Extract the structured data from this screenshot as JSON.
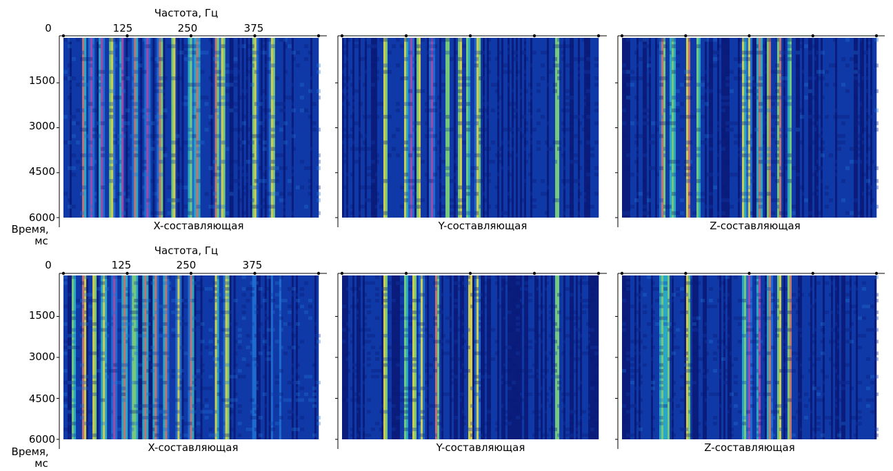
{
  "colors": {
    "colormap": [
      "#0a1a78",
      "#103aa8",
      "#1f6fd2",
      "#2bb0c8",
      "#7fd27a",
      "#e0d84a",
      "#d07a6a",
      "#b04aa8"
    ],
    "axis": "#000000",
    "background": "#ffffff"
  },
  "chart_data": [
    {
      "type": "heatmap",
      "row": 1,
      "component": "X",
      "title": "X-составляющая",
      "xlabel": "Частота, Гц",
      "ylabel": "Время,\nмс",
      "xlim": [
        0,
        500
      ],
      "ylim": [
        0,
        6000
      ],
      "xticks": [
        "0",
        "125",
        "250",
        "375"
      ],
      "yticks": [
        "0",
        "1500",
        "3000",
        "4500",
        "6000"
      ],
      "bright_bands_hz": [
        40,
        55,
        75,
        95,
        115,
        140,
        165,
        190,
        215,
        250,
        262,
        300,
        312,
        375,
        410
      ],
      "energy_level": 0.65
    },
    {
      "type": "heatmap",
      "row": 1,
      "component": "Y",
      "title": "Y-составляющая",
      "xlim": [
        0,
        500
      ],
      "ylim": [
        0,
        6000
      ],
      "bright_bands_hz": [
        85,
        125,
        135,
        150,
        175,
        205,
        230,
        245,
        265,
        420
      ],
      "energy_level": 0.45
    },
    {
      "type": "heatmap",
      "row": 1,
      "component": "Z",
      "title": "Z-составляющая",
      "xlim": [
        0,
        500
      ],
      "ylim": [
        0,
        6000
      ],
      "bright_bands_hz": [
        80,
        100,
        130,
        150,
        240,
        250,
        270,
        290,
        310,
        330
      ],
      "energy_level": 0.55
    },
    {
      "type": "heatmap",
      "row": 2,
      "component": "X",
      "title": "X-составляющая",
      "xlabel": "Частота, Гц",
      "ylabel": "Время,\nмс",
      "xlim": [
        0,
        500
      ],
      "ylim": [
        0,
        6000
      ],
      "xticks": [
        "0",
        "125",
        "250",
        "375"
      ],
      "yticks": [
        "0",
        "1500",
        "3000",
        "4500",
        "6000"
      ],
      "bright_bands_hz": [
        20,
        40,
        60,
        80,
        100,
        120,
        140,
        160,
        180,
        200,
        225,
        250,
        300,
        320
      ],
      "energy_level": 0.75
    },
    {
      "type": "heatmap",
      "row": 2,
      "component": "Y",
      "title": "Y-составляющая",
      "xlim": [
        0,
        500
      ],
      "ylim": [
        0,
        6000
      ],
      "bright_bands_hz": [
        85,
        125,
        140,
        155,
        185,
        250,
        265,
        420
      ],
      "energy_level": 0.4
    },
    {
      "type": "heatmap",
      "row": 2,
      "component": "Z",
      "title": "Z-составляющая",
      "xlim": [
        0,
        500
      ],
      "ylim": [
        0,
        6000
      ],
      "bright_bands_hz": [
        80,
        90,
        130,
        240,
        250,
        270,
        290,
        310,
        330
      ],
      "energy_level": 0.55
    }
  ]
}
